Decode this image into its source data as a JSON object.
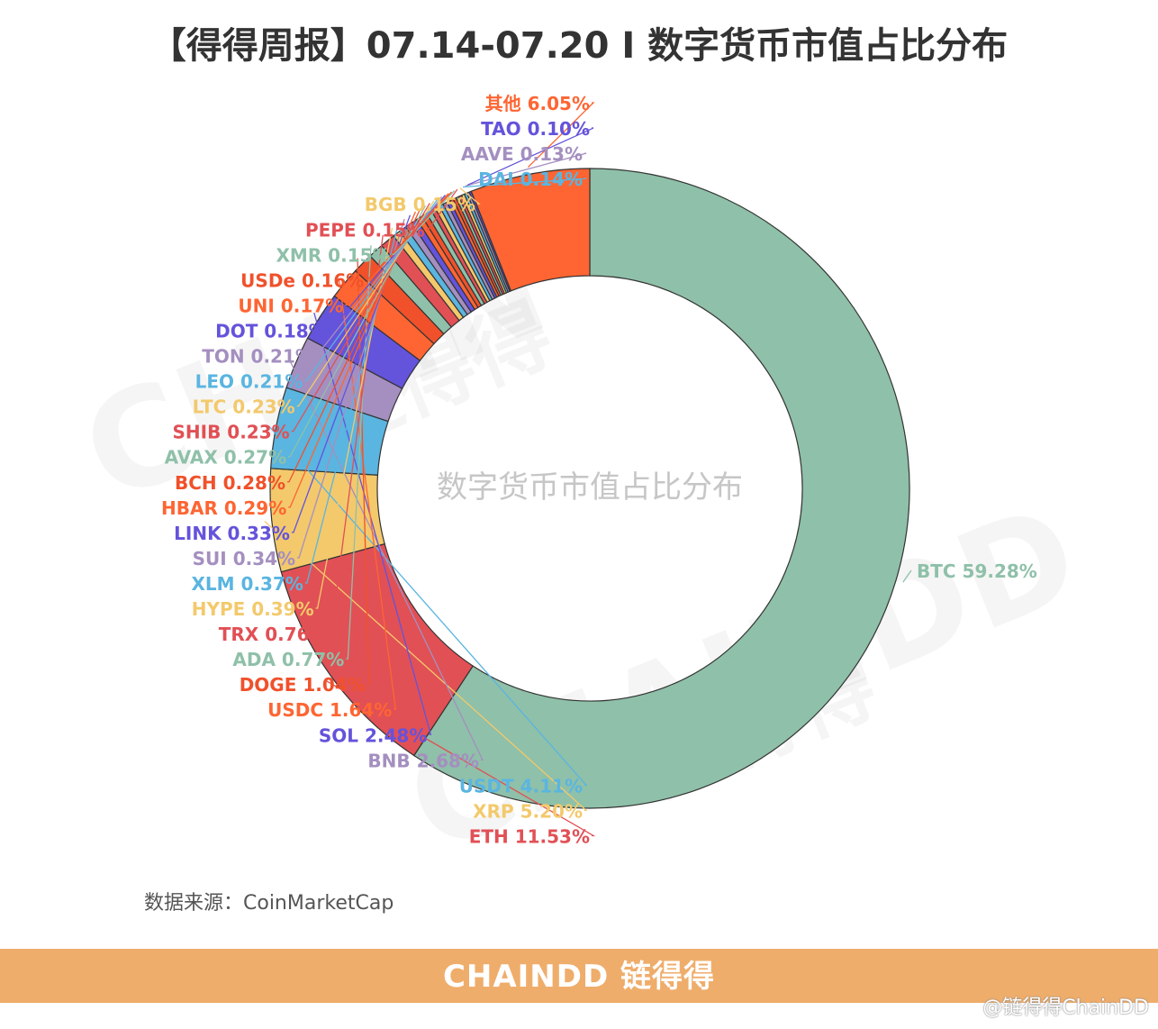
{
  "title": "【得得周报】07.14-07.20 I 数字货币市值占比分布",
  "center_label": "数字货币市值占比分布",
  "source": "数据来源：CoinMarketCap",
  "footer_logo": "CHAINDD 链得得",
  "credit": "@链得得ChainDD",
  "watermarks": [
    "CHAIN",
    "链得得",
    "CHAINDD",
    "链得得"
  ],
  "colors": {
    "green": "#8fc0a9",
    "orange": "#fe6532",
    "purple": "#6453db",
    "lavender": "#a48fc0",
    "blue": "#5ab5e0",
    "yellow": "#f3c96c",
    "red": "#e15055",
    "red_orange": "#f0512b",
    "footer": "#efad6b"
  },
  "chart_data": {
    "type": "donut",
    "title": "【得得周报】07.14-07.20 I 数字货币市值占比分布",
    "center_text": "数字货币市值占比分布",
    "unit": "%",
    "slices": [
      {
        "name": "BTC",
        "value": 59.28,
        "label": "BTC 59.28%",
        "color": "#8fc0a9"
      },
      {
        "name": "ETH",
        "value": 11.53,
        "label": "ETH 11.53%",
        "color": "#e15055"
      },
      {
        "name": "XRP",
        "value": 5.2,
        "label": "XRP 5.20%",
        "color": "#f3c96c"
      },
      {
        "name": "USDT",
        "value": 4.11,
        "label": "USDT 4.11%",
        "color": "#5ab5e0"
      },
      {
        "name": "BNB",
        "value": 2.68,
        "label": "BNB 2.68%",
        "color": "#a48fc0"
      },
      {
        "name": "SOL",
        "value": 2.48,
        "label": "SOL 2.48%",
        "color": "#6453db"
      },
      {
        "name": "USDC",
        "value": 1.64,
        "label": "USDC 1.64%",
        "color": "#fe6532"
      },
      {
        "name": "DOGE",
        "value": 1.04,
        "label": "DOGE 1.04%",
        "color": "#f0512b"
      },
      {
        "name": "ADA",
        "value": 0.77,
        "label": "ADA 0.77%",
        "color": "#8fc0a9"
      },
      {
        "name": "TRX",
        "value": 0.76,
        "label": "TRX 0.76%",
        "color": "#e15055"
      },
      {
        "name": "HYPE",
        "value": 0.39,
        "label": "HYPE 0.39%",
        "color": "#f3c96c"
      },
      {
        "name": "XLM",
        "value": 0.37,
        "label": "XLM 0.37%",
        "color": "#5ab5e0"
      },
      {
        "name": "SUI",
        "value": 0.34,
        "label": "SUI 0.34%",
        "color": "#a48fc0"
      },
      {
        "name": "LINK",
        "value": 0.33,
        "label": "LINK 0.33%",
        "color": "#6453db"
      },
      {
        "name": "HBAR",
        "value": 0.29,
        "label": "HBAR 0.29%",
        "color": "#fe6532"
      },
      {
        "name": "BCH",
        "value": 0.28,
        "label": "BCH 0.28%",
        "color": "#f0512b"
      },
      {
        "name": "AVAX",
        "value": 0.27,
        "label": "AVAX 0.27%",
        "color": "#8fc0a9"
      },
      {
        "name": "SHIB",
        "value": 0.23,
        "label": "SHIB 0.23%",
        "color": "#e15055"
      },
      {
        "name": "LTC",
        "value": 0.23,
        "label": "LTC 0.23%",
        "color": "#f3c96c"
      },
      {
        "name": "LEO",
        "value": 0.21,
        "label": "LEO 0.21%",
        "color": "#5ab5e0"
      },
      {
        "name": "TON",
        "value": 0.21,
        "label": "TON 0.21%",
        "color": "#a48fc0"
      },
      {
        "name": "DOT",
        "value": 0.18,
        "label": "DOT 0.18%",
        "color": "#6453db"
      },
      {
        "name": "UNI",
        "value": 0.17,
        "label": "UNI 0.17%",
        "color": "#fe6532"
      },
      {
        "name": "USDe",
        "value": 0.16,
        "label": "USDe 0.16%",
        "color": "#f0512b"
      },
      {
        "name": "XMR",
        "value": 0.15,
        "label": "XMR 0.15%",
        "color": "#8fc0a9"
      },
      {
        "name": "PEPE",
        "value": 0.15,
        "label": "PEPE 0.15%",
        "color": "#e15055"
      },
      {
        "name": "BGB",
        "value": 0.15,
        "label": "BGB 0.15%",
        "color": "#f3c96c"
      },
      {
        "name": "DAI",
        "value": 0.14,
        "label": "DAI 0.14%",
        "color": "#5ab5e0"
      },
      {
        "name": "AAVE",
        "value": 0.13,
        "label": "AAVE 0.13%",
        "color": "#a48fc0"
      },
      {
        "name": "TAO",
        "value": 0.1,
        "label": "TAO 0.10%",
        "color": "#6453db"
      },
      {
        "name": "其他",
        "value": 6.05,
        "label": "其他 6.05%",
        "color": "#fe6532"
      }
    ]
  }
}
